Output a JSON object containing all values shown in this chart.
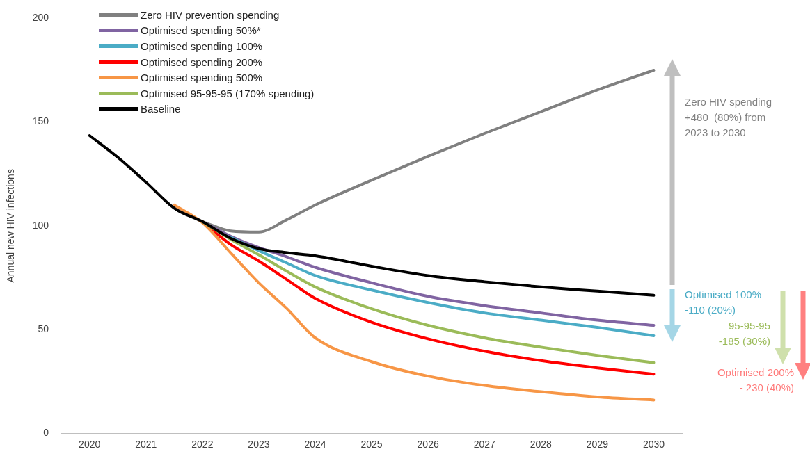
{
  "chart_data": {
    "type": "line",
    "ylabel": "Annual new HIV infections",
    "x": [
      2020,
      2020.5,
      2021,
      2021.5,
      2022,
      2022.5,
      2023,
      2023.5,
      2024,
      2025,
      2026,
      2027,
      2028,
      2029,
      2030
    ],
    "xlim": [
      2019.5,
      2030.5
    ],
    "xticks": [
      2020,
      2021,
      2022,
      2023,
      2024,
      2025,
      2026,
      2027,
      2028,
      2029,
      2030
    ],
    "ylim": [
      0,
      200
    ],
    "yticks": [
      0,
      50,
      100,
      150,
      200
    ],
    "grid": false,
    "legend": "top left",
    "marker": "none",
    "line_style": "solid",
    "series": [
      {
        "name": "Zero HIV prevention spending",
        "color": "#808080",
        "values": [
          null,
          null,
          null,
          null,
          102,
          97.5,
          97,
          103,
          110,
          122,
          133.5,
          144.5,
          155,
          165.5,
          175
        ]
      },
      {
        "name": "Optimised spending 50%*",
        "color": "#8064a2",
        "values": [
          null,
          null,
          null,
          null,
          102,
          95,
          89.5,
          85,
          80,
          72.5,
          66,
          61.5,
          58,
          54.5,
          52
        ]
      },
      {
        "name": "Optimised spending 100%",
        "color": "#4bacc6",
        "values": [
          null,
          null,
          null,
          null,
          null,
          94.5,
          88,
          82,
          76,
          69,
          63,
          58,
          54.5,
          51,
          47
        ]
      },
      {
        "name": "Optimised spending 200%",
        "color": "#ff0000",
        "values": [
          null,
          null,
          null,
          null,
          102,
          91,
          83,
          74,
          65,
          53.5,
          45.5,
          39.5,
          35,
          31.5,
          28.5
        ]
      },
      {
        "name": "Optimised spending 500%",
        "color": "#f79646",
        "values": [
          null,
          null,
          null,
          110,
          101.5,
          87,
          72.5,
          60,
          46,
          34.5,
          27.5,
          23,
          20,
          17.5,
          16
        ]
      },
      {
        "name": "Optimised 95-95-95 (170% spending)",
        "color": "#9bbb59",
        "values": [
          null,
          null,
          null,
          null,
          102,
          93.5,
          86,
          78,
          70.5,
          60,
          52,
          46,
          41.5,
          37.5,
          34
        ]
      },
      {
        "name": "Baseline",
        "color": "#000000",
        "values": [
          143.5,
          133,
          121,
          108.5,
          102,
          94,
          89,
          87,
          85.5,
          80.5,
          76,
          73,
          70.5,
          68.5,
          66.5
        ]
      }
    ],
    "annotations": [
      "Zero HIV spending\n+480  (80%) from\n2023 to 2030",
      "Optimised 100%\n-110 (20%)",
      "95-95-95\n-185 (30%)",
      "Optimised 200%\n- 230 (40%)"
    ]
  }
}
